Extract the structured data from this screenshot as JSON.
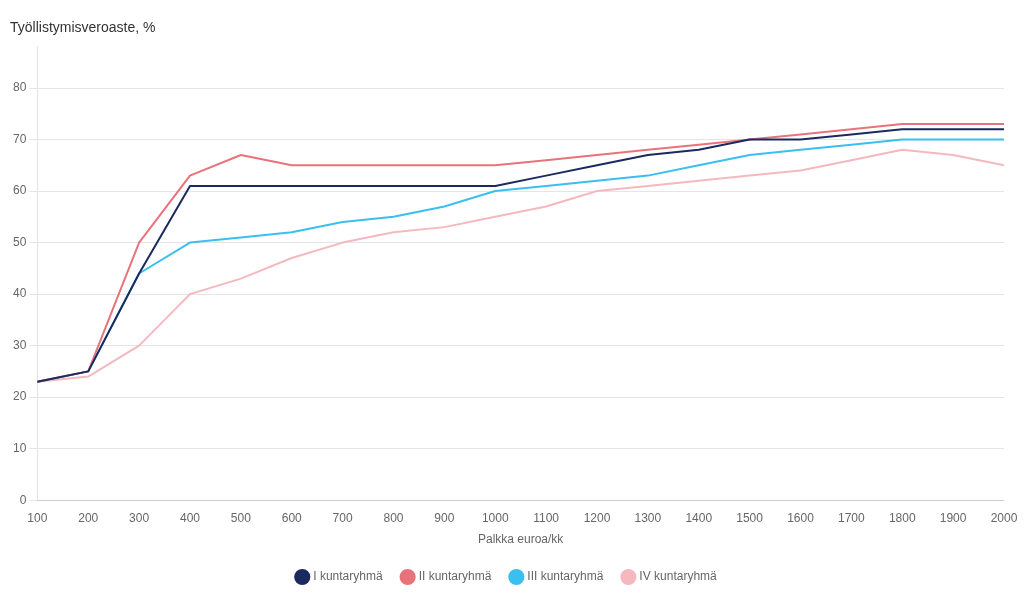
{
  "chart_data": {
    "type": "line",
    "title": "Työllistymisveroaste, %",
    "xlabel": "Palkka euroa/kk",
    "x": [
      100,
      200,
      300,
      400,
      500,
      600,
      700,
      800,
      900,
      1000,
      1100,
      1200,
      1300,
      1400,
      1500,
      1600,
      1700,
      1800,
      1900,
      2000
    ],
    "series": [
      {
        "name": "I kuntaryhmä",
        "color": "#1b2a5e",
        "values": [
          23,
          25,
          44,
          61,
          61,
          61,
          61,
          61,
          61,
          61,
          63,
          65,
          67,
          68,
          70,
          70,
          71,
          72,
          72,
          72
        ]
      },
      {
        "name": "II kuntaryhmä",
        "color": "#e8737a",
        "values": [
          23,
          25,
          50,
          63,
          67,
          65,
          65,
          65,
          65,
          65,
          66,
          67,
          68,
          69,
          70,
          71,
          72,
          73,
          73,
          73
        ]
      },
      {
        "name": "III kuntaryhmä",
        "color": "#3bbfef",
        "values": [
          23,
          25,
          44,
          50,
          51,
          52,
          54,
          55,
          57,
          60,
          61,
          62,
          63,
          65,
          67,
          68,
          69,
          70,
          70,
          70
        ]
      },
      {
        "name": "IV kuntaryhmä",
        "color": "#f4b8be",
        "values": [
          23,
          24,
          30,
          40,
          43,
          47,
          50,
          52,
          53,
          55,
          57,
          60,
          61,
          62,
          63,
          64,
          66,
          68,
          67,
          65
        ]
      }
    ],
    "xlim": [
      100,
      2000
    ],
    "xticks": [
      100,
      200,
      300,
      400,
      500,
      600,
      700,
      800,
      900,
      1000,
      1100,
      1200,
      1300,
      1400,
      1500,
      1600,
      1700,
      1800,
      1900,
      2000
    ],
    "ylim": [
      0,
      88
    ],
    "yticks": [
      0,
      10,
      20,
      30,
      40,
      50,
      60,
      70,
      80
    ],
    "grid": "y",
    "legend": "bottom"
  }
}
